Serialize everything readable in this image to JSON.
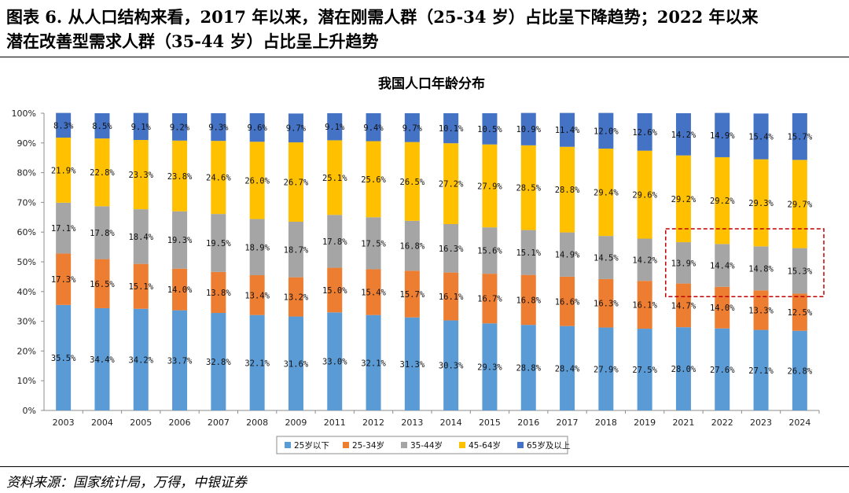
{
  "figure": {
    "title_line1": "图表 6. 从人口结构来看，2017 年以来，潜在刚需人群（25-34 岁）占比呈下降趋势；2022 年以来",
    "title_line2": "潜在改善型需求人群（35-44 岁）占比呈上升趋势",
    "source": "资料来源：国家统计局，万得，中银证券"
  },
  "colors": {
    "under25": "#5B9BD5",
    "age25_34": "#ED7D31",
    "age35_44": "#A5A5A5",
    "age45_64": "#FFC000",
    "age65plus": "#4472C4",
    "highlight": "#C00000"
  },
  "chart_data": {
    "type": "bar",
    "stacked": true,
    "title": "我国人口年龄分布",
    "xlabel": "",
    "ylabel": "",
    "ylim": [
      0,
      100
    ],
    "yticks": [
      "0%",
      "10%",
      "20%",
      "30%",
      "40%",
      "50%",
      "60%",
      "70%",
      "80%",
      "90%",
      "100%"
    ],
    "categories": [
      "2003",
      "2004",
      "2005",
      "2006",
      "2007",
      "2008",
      "2009",
      "2011",
      "2012",
      "2013",
      "2014",
      "2015",
      "2016",
      "2017",
      "2018",
      "2019",
      "2021",
      "2022",
      "2023",
      "2024"
    ],
    "series": [
      {
        "name": "25岁以下",
        "color_key": "under25",
        "values": [
          35.5,
          34.4,
          34.2,
          33.7,
          32.8,
          32.1,
          31.6,
          33.0,
          32.1,
          31.3,
          30.3,
          29.3,
          28.8,
          28.4,
          27.9,
          27.5,
          28.0,
          27.6,
          27.1,
          26.8
        ]
      },
      {
        "name": "25-34岁",
        "color_key": "age25_34",
        "values": [
          17.3,
          16.5,
          15.1,
          14.0,
          13.8,
          13.4,
          13.2,
          15.0,
          15.4,
          15.7,
          16.1,
          16.7,
          16.8,
          16.6,
          16.3,
          16.1,
          14.7,
          14.0,
          13.3,
          12.5
        ]
      },
      {
        "name": "35-44岁",
        "color_key": "age35_44",
        "values": [
          17.1,
          17.8,
          18.4,
          19.3,
          19.5,
          18.9,
          18.7,
          17.8,
          17.5,
          16.8,
          16.3,
          15.6,
          15.1,
          14.9,
          14.5,
          14.2,
          13.9,
          14.4,
          14.8,
          15.3
        ]
      },
      {
        "name": "45-64岁",
        "color_key": "age45_64",
        "values": [
          21.9,
          22.8,
          23.3,
          23.8,
          24.6,
          26.0,
          26.7,
          25.1,
          25.6,
          26.5,
          27.2,
          27.9,
          28.5,
          28.8,
          29.4,
          29.6,
          29.2,
          29.2,
          29.3,
          29.7
        ]
      },
      {
        "name": "65岁及以上",
        "color_key": "age65plus",
        "values": [
          8.3,
          8.5,
          9.1,
          9.2,
          9.3,
          9.6,
          9.7,
          9.1,
          9.4,
          9.7,
          10.1,
          10.5,
          10.9,
          11.4,
          12.0,
          12.6,
          14.2,
          14.9,
          15.4,
          15.7
        ]
      }
    ],
    "label_format": "percent_one_decimal",
    "legend_position": "bottom-center",
    "annotation": {
      "type": "dashed-box",
      "from_category": "2021",
      "to_category": "2024",
      "series": "35-44岁"
    }
  }
}
